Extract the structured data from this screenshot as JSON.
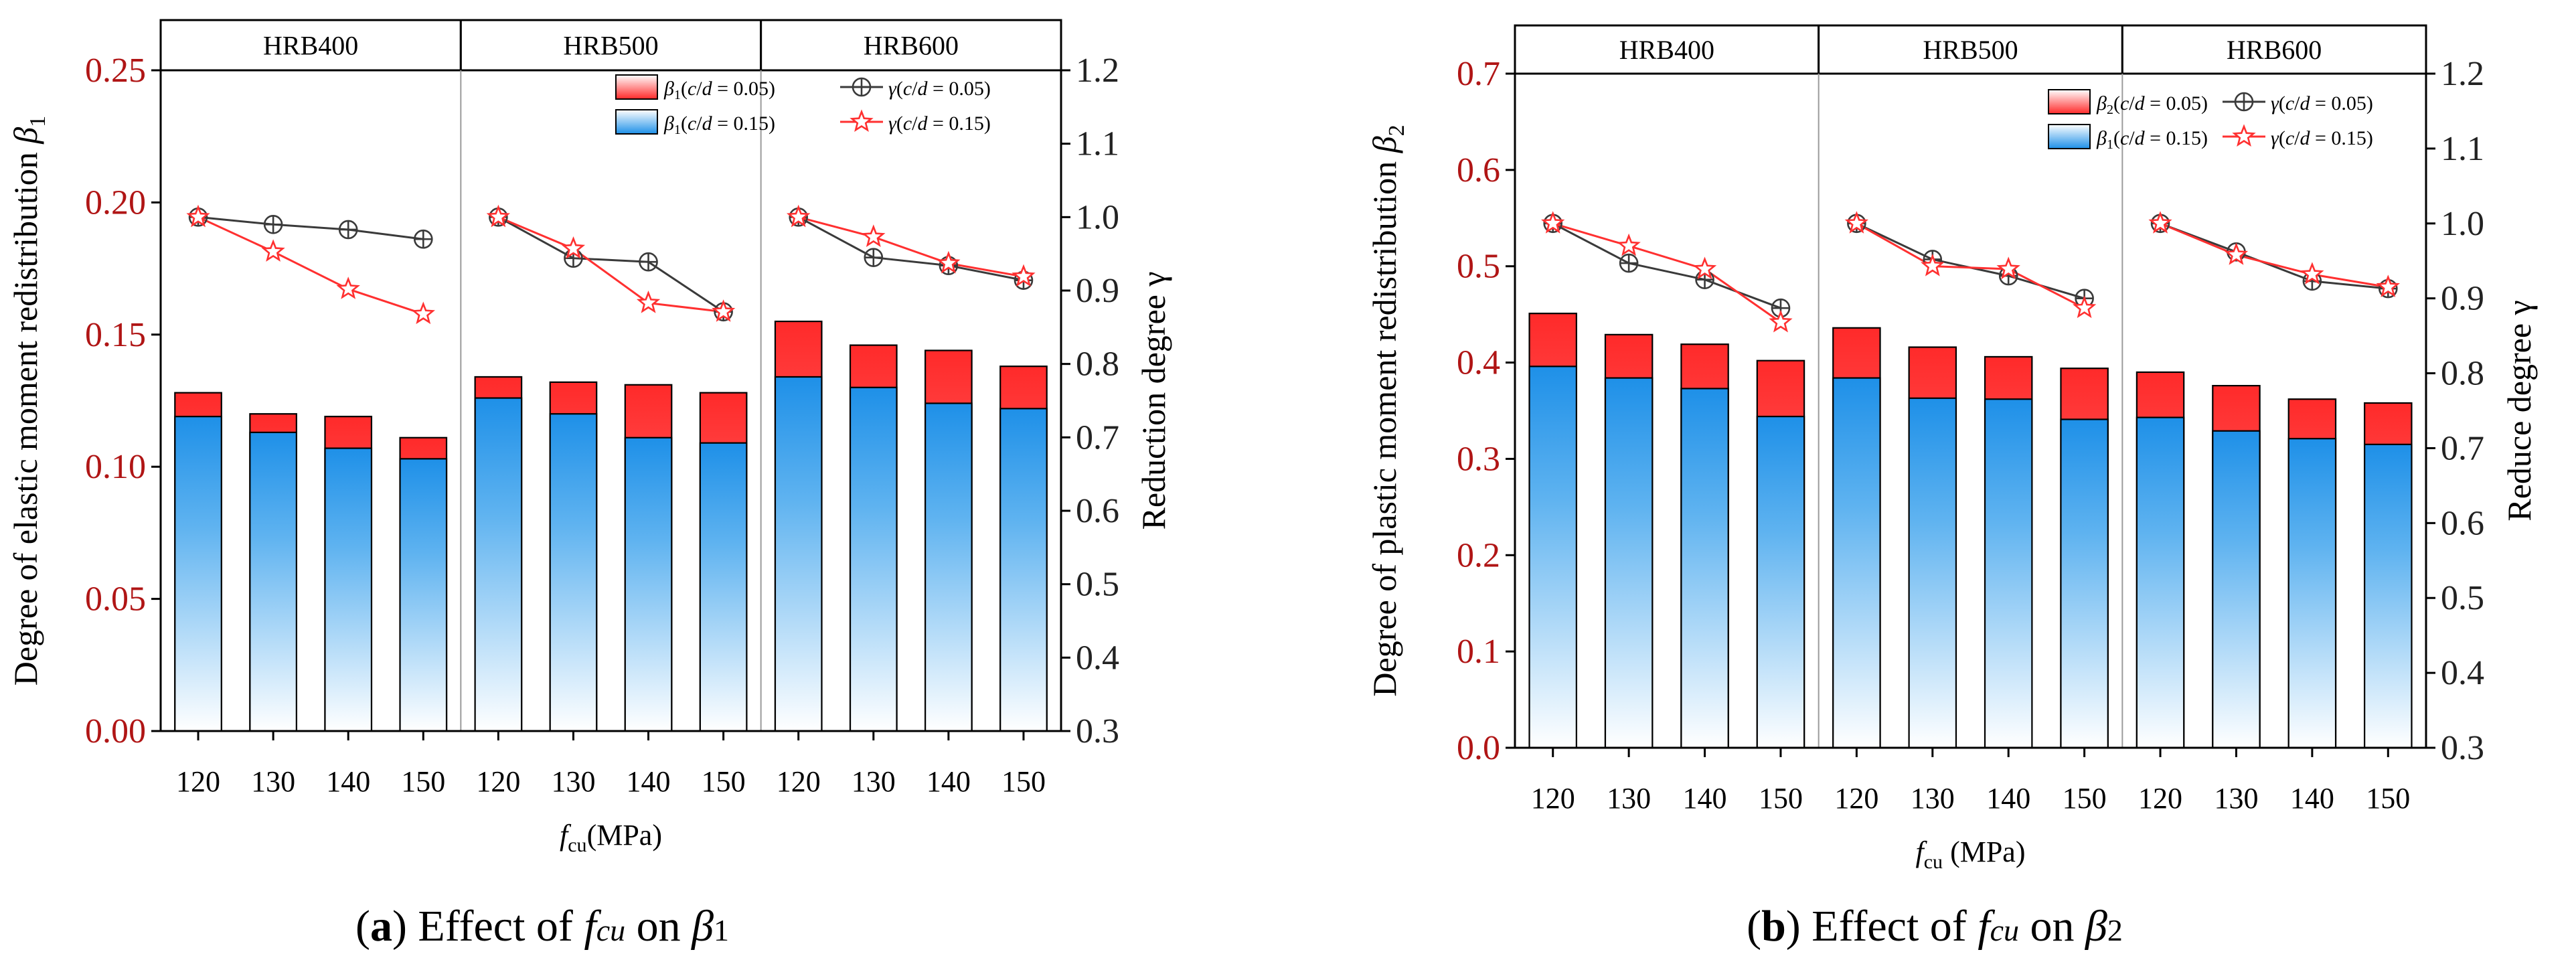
{
  "colors": {
    "left_axis": "#b01515",
    "red_bar_top": "#ff2a2a",
    "red_bar_bottom": "#ffffff",
    "blue_bar_top": "#1e90e8",
    "blue_bar_bottom": "#ffffff",
    "gamma_small": "#3a3a3a",
    "gamma_large": "#ff3030"
  },
  "chart_data": [
    {
      "panel": "a",
      "type": "bar+line",
      "caption": {
        "label": "(a)",
        "text": "Effect of",
        "sym": "f",
        "sym_sub": "cu",
        "on": "on",
        "beta": "β",
        "beta_sub": "1"
      },
      "groups": [
        "HRB400",
        "HRB500",
        "HRB600"
      ],
      "categories": [
        "120",
        "130",
        "140",
        "150"
      ],
      "xlabel": {
        "sym": "f",
        "sub": "cu",
        "unit": "(MPa)"
      },
      "ylabel_left": {
        "text": "Degree of elastic moment redistribution",
        "sym": "β",
        "sub": "1"
      },
      "ylabel_right": "Reduction degree γ",
      "ylim_left": [
        0,
        0.25
      ],
      "yticks_left": [
        "0.00",
        "0.05",
        "0.10",
        "0.15",
        "0.20",
        "0.25"
      ],
      "ylim_right": [
        0.3,
        1.2
      ],
      "yticks_right": [
        "0.3",
        "0.4",
        "0.5",
        "0.6",
        "0.7",
        "0.8",
        "0.9",
        "1.0",
        "1.1",
        "1.2"
      ],
      "series": [
        {
          "name": "β1(c/d = 0.05)",
          "kind": "bar",
          "color": "red",
          "values": [
            [
              0.128,
              0.12,
              0.119,
              0.111
            ],
            [
              0.134,
              0.132,
              0.131,
              0.128
            ],
            [
              0.155,
              0.146,
              0.144,
              0.138
            ]
          ]
        },
        {
          "name": "β1(c/d = 0.15)",
          "kind": "bar",
          "color": "blue",
          "values": [
            [
              0.119,
              0.113,
              0.107,
              0.103
            ],
            [
              0.126,
              0.12,
              0.111,
              0.109
            ],
            [
              0.134,
              0.13,
              0.124,
              0.122
            ]
          ]
        },
        {
          "name": "γ(c/d = 0.05)",
          "kind": "line",
          "marker": "circle-plus",
          "values": [
            [
              1.0,
              0.99,
              0.983,
              0.97
            ],
            [
              1.0,
              0.944,
              0.939,
              0.871
            ],
            [
              1.0,
              0.945,
              0.934,
              0.914
            ]
          ]
        },
        {
          "name": "γ(c/d = 0.15)",
          "kind": "line",
          "marker": "star",
          "values": [
            [
              1.0,
              0.953,
              0.902,
              0.868
            ],
            [
              1.0,
              0.957,
              0.883,
              0.871
            ],
            [
              1.0,
              0.973,
              0.937,
              0.919
            ]
          ]
        }
      ],
      "legend": [
        {
          "sym": "β",
          "sub": "1",
          "rest": "(",
          "c": "c",
          "slash": "/",
          "d": "d",
          "val": " = 0.05)"
        },
        {
          "sym": "γ",
          "sub": "",
          "rest": "(",
          "c": "c",
          "slash": "/",
          "d": "d",
          "val": " = 0.05)"
        },
        {
          "sym": "β",
          "sub": "1",
          "rest": "(",
          "c": "c",
          "slash": "/",
          "d": "d",
          "val": " = 0.15)"
        },
        {
          "sym": "γ",
          "sub": "",
          "rest": "(",
          "c": "c",
          "slash": "/",
          "d": "d",
          "val": " = 0.15)"
        }
      ]
    },
    {
      "panel": "b",
      "type": "bar+line",
      "caption": {
        "label": "(b)",
        "text": "Effect of",
        "sym": "f",
        "sym_sub": "cu",
        "on": "on",
        "beta": "β",
        "beta_sub": "2"
      },
      "groups": [
        "HRB400",
        "HRB500",
        "HRB600"
      ],
      "categories": [
        "120",
        "130",
        "140",
        "150"
      ],
      "xlabel": {
        "sym": "f",
        "sub": "cu",
        "unit": " (MPa)"
      },
      "ylabel_left": {
        "text": "Degree of plastic moment redistribution",
        "sym": "β",
        "sub": "2"
      },
      "ylabel_right": "Reduce degree γ",
      "ylim_left": [
        0,
        0.7
      ],
      "yticks_left": [
        "0.0",
        "0.1",
        "0.2",
        "0.3",
        "0.4",
        "0.5",
        "0.6",
        "0.7"
      ],
      "ylim_right": [
        0.3,
        1.2
      ],
      "yticks_right": [
        "0.3",
        "0.4",
        "0.5",
        "0.6",
        "0.7",
        "0.8",
        "0.9",
        "1.0",
        "1.1",
        "1.2"
      ],
      "series": [
        {
          "name": "β2(c/d = 0.05)",
          "kind": "bar",
          "color": "red",
          "values": [
            [
              0.451,
              0.429,
              0.419,
              0.402
            ],
            [
              0.436,
              0.416,
              0.406,
              0.394
            ],
            [
              0.39,
              0.376,
              0.362,
              0.358
            ]
          ]
        },
        {
          "name": "β1(c/d = 0.15)",
          "kind": "bar",
          "color": "blue",
          "values": [
            [
              0.396,
              0.384,
              0.373,
              0.344
            ],
            [
              0.384,
              0.363,
              0.362,
              0.341
            ],
            [
              0.343,
              0.329,
              0.321,
              0.315
            ]
          ]
        },
        {
          "name": "γ(c/d = 0.05)",
          "kind": "line",
          "marker": "circle-plus",
          "values": [
            [
              1.0,
              0.947,
              0.925,
              0.887
            ],
            [
              1.0,
              0.952,
              0.93,
              0.9
            ],
            [
              1.0,
              0.962,
              0.923,
              0.913
            ]
          ]
        },
        {
          "name": "γ(c/d = 0.15)",
          "kind": "line",
          "marker": "star",
          "values": [
            [
              1.0,
              0.97,
              0.939,
              0.868
            ],
            [
              1.0,
              0.943,
              0.939,
              0.887
            ],
            [
              1.0,
              0.958,
              0.932,
              0.915
            ]
          ]
        }
      ],
      "legend": [
        {
          "sym": "β",
          "sub": "2",
          "rest": "(",
          "c": "c",
          "slash": "/",
          "d": "d",
          "val": " = 0.05)"
        },
        {
          "sym": "γ",
          "sub": "",
          "rest": "(",
          "c": "c",
          "slash": "/",
          "d": "d",
          "val": " = 0.05)"
        },
        {
          "sym": "β",
          "sub": "1",
          "rest": "(",
          "c": "c",
          "slash": "/",
          "d": "d",
          "val": " = 0.15)"
        },
        {
          "sym": "γ",
          "sub": "",
          "rest": "(",
          "c": "c",
          "slash": "/",
          "d": "d",
          "val": " = 0.15)"
        }
      ]
    }
  ]
}
